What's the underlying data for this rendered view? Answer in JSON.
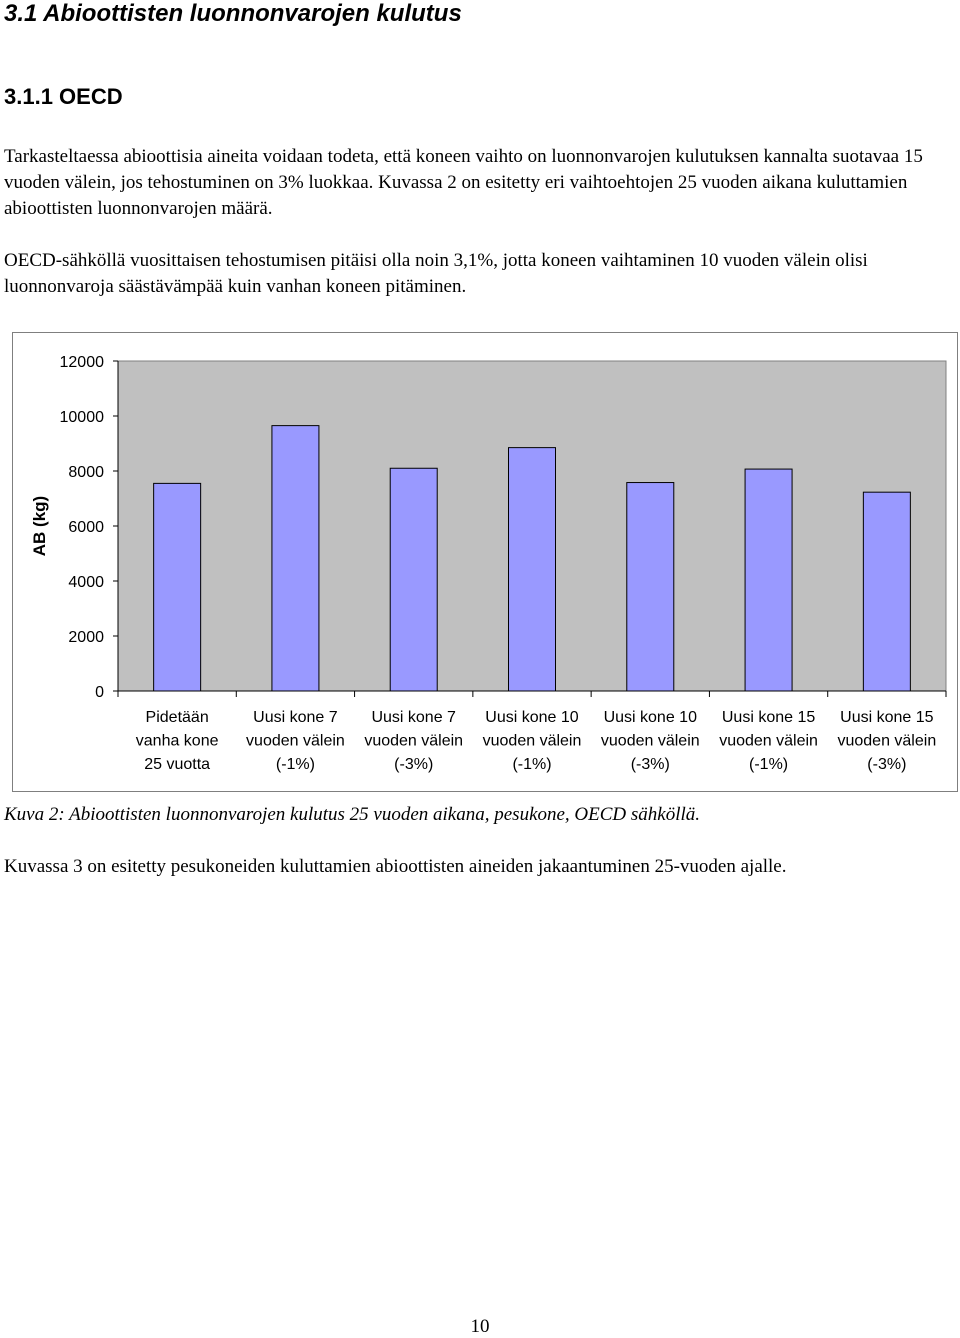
{
  "heading": "3.1 Abioottisten luonnonvarojen kulutus",
  "subheading": "3.1.1 OECD",
  "paragraphs": {
    "p1": "Tarkasteltaessa abioottisia aineita voidaan todeta, että koneen vaihto on luonnonvarojen kulutuksen kannalta suotavaa 15 vuoden välein, jos tehostuminen on 3% luokkaa. Kuvassa 2 on esitetty eri vaihtoehtojen 25 vuoden aikana kuluttamien abioottisten luonnonvarojen määrä.",
    "p2": "OECD-sähköllä vuosittaisen tehostumisen pitäisi olla noin 3,1%, jotta koneen vaihtaminen 10 vuoden välein olisi luonnonvaroja säästävämpää kuin vanhan koneen pitäminen.",
    "p3": "Kuvassa 3 on esitetty pesukoneiden kuluttamien abioottisten aineiden jakaantuminen 25-vuoden ajalle."
  },
  "caption": "Kuva 2: Abioottisten luonnonvarojen kulutus 25 vuoden aikana, pesukone, OECD sähköllä.",
  "page_number": "10",
  "chart_data": {
    "type": "bar",
    "categories": [
      [
        "Pidetään",
        "vanha kone",
        "25 vuotta"
      ],
      [
        "Uusi kone 7",
        "vuoden välein",
        "(-1%)"
      ],
      [
        "Uusi kone 7",
        "vuoden välein",
        "(-3%)"
      ],
      [
        "Uusi kone 10",
        "vuoden välein",
        "(-1%)"
      ],
      [
        "Uusi kone 10",
        "vuoden välein",
        "(-3%)"
      ],
      [
        "Uusi kone 15",
        "vuoden välein",
        "(-1%)"
      ],
      [
        "Uusi kone 15",
        "vuoden välein",
        "(-3%)"
      ]
    ],
    "values": [
      7550,
      9650,
      8100,
      8850,
      7580,
      8070,
      7230
    ],
    "ylabel": "AB (kg)",
    "xlabel": "",
    "ylim": [
      0,
      12000
    ],
    "yticks": [
      "0",
      "2000",
      "4000",
      "6000",
      "8000",
      "10000",
      "12000"
    ],
    "grid": false,
    "legend": "none",
    "bar_color": "#9999ff",
    "plot_bg": "#c0c0c0"
  }
}
